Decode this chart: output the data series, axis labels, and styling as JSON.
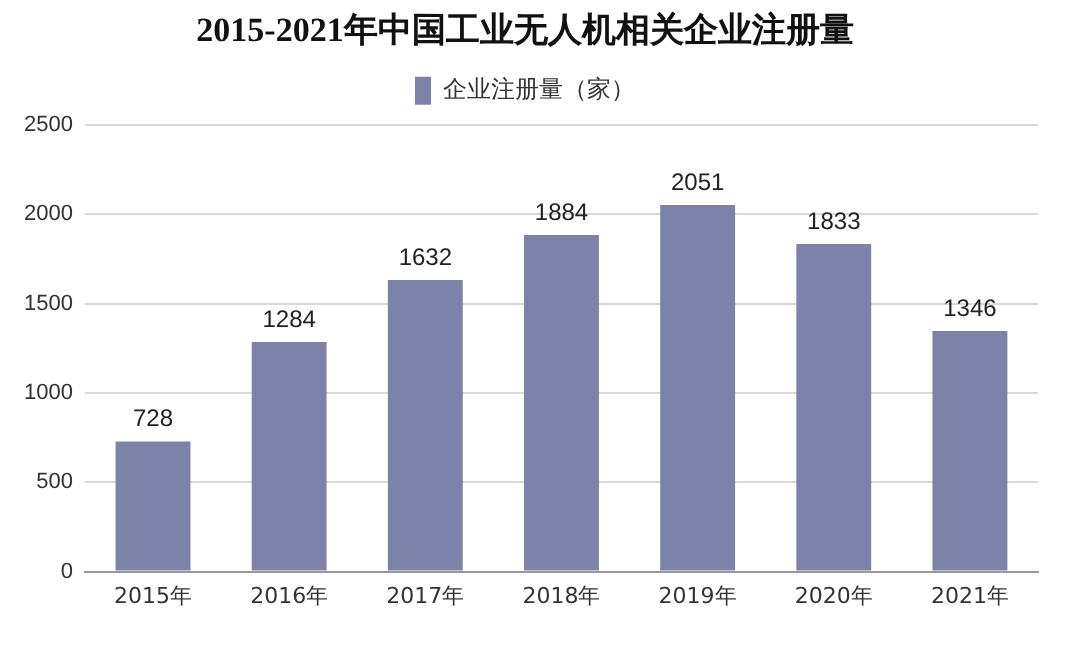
{
  "chart_data": {
    "type": "bar",
    "title": "2015-2021年中国工业无人机相关企业注册量",
    "categories": [
      "2015年",
      "2016年",
      "2017年",
      "2018年",
      "2019年",
      "2020年",
      "2021年"
    ],
    "series": [
      {
        "name": "企业注册量（家）",
        "color": "#7d82a8",
        "values": [
          728,
          1284,
          1632,
          1884,
          2051,
          1833,
          1346
        ]
      }
    ],
    "ylim": [
      0,
      2500
    ],
    "yticks": [
      0,
      500,
      1000,
      1500,
      2000,
      2500
    ],
    "grid": "y",
    "legend": "top",
    "data_labels": true
  }
}
